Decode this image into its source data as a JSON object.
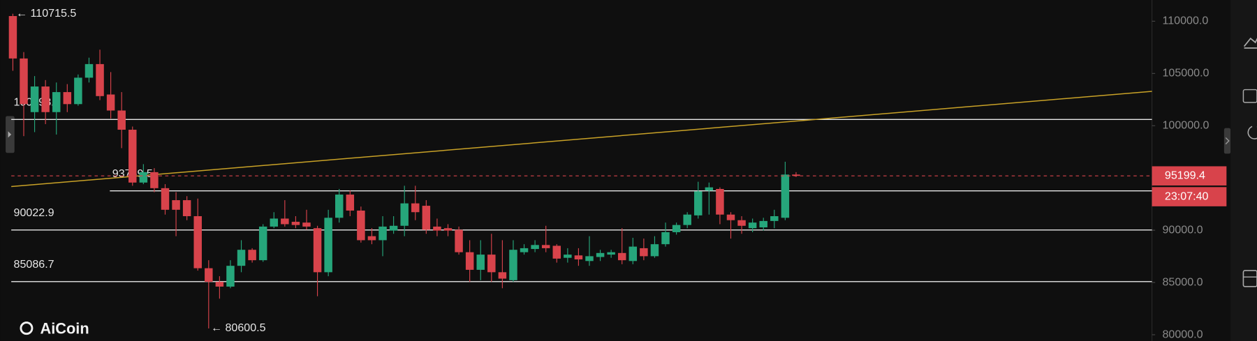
{
  "chart_data": {
    "type": "candlestick",
    "ylim": [
      79400,
      112030
    ],
    "yticks": [
      {
        "value": 110000,
        "label": "110000.0"
      },
      {
        "value": 105000,
        "label": "105000.0"
      },
      {
        "value": 100000,
        "label": "100000.0"
      },
      {
        "value": 95000,
        "label": "95000.0"
      },
      {
        "value": 90000,
        "label": "90000.0"
      },
      {
        "value": 85000,
        "label": "85000.0"
      },
      {
        "value": 80000,
        "label": "80000.0"
      }
    ],
    "up_color": "#26a67b",
    "down_color": "#d8434b",
    "open": [
      110494,
      106434,
      101302,
      103753,
      101302,
      103217,
      102068,
      104596,
      105898,
      102987,
      101455,
      99617,
      94561,
      95557,
      94025,
      92876,
      92876,
      91344,
      86365,
      85063,
      84604,
      86595,
      88127,
      87131,
      90348,
      91114,
      90808,
      90731,
      90195,
      85982,
      91191,
      93412,
      91880,
      89429,
      89046,
      89965,
      90425,
      92570,
      92340,
      90348,
      90195,
      90042,
      87897,
      86212,
      87667,
      85982,
      85216,
      87897,
      88203,
      88587,
      88510,
      87361,
      87591,
      87054,
      87438,
      87667,
      87821,
      87054,
      88280,
      87514,
      88663,
      89812,
      90501,
      91420,
      93795,
      93948,
      91497,
      90961,
      90195,
      90272,
      90885,
      91191,
      95327
    ],
    "high": [
      110715.5,
      107047,
      104749,
      104366,
      104136,
      103983,
      104902,
      106511,
      107277,
      105132,
      103217,
      99923,
      96323,
      95940,
      94408,
      93642,
      93259,
      93029,
      87131,
      85599,
      87131,
      89046,
      88280,
      90578,
      91727,
      92876,
      91344,
      91957,
      90425,
      91957,
      93948,
      93795,
      92263,
      90195,
      91344,
      91344,
      94255,
      94255,
      92876,
      91114,
      90578,
      90348,
      89046,
      89046,
      89659,
      89046,
      89046,
      88663,
      89046,
      90425,
      88663,
      88280,
      88280,
      89429,
      88127,
      88127,
      90195,
      89276,
      89199,
      89429,
      90731,
      90731,
      91727,
      94638,
      94561,
      94102,
      91727,
      91344,
      91114,
      91191,
      91957,
      96553,
      95557
    ],
    "low": [
      105259,
      99004,
      99387,
      100153,
      99157,
      101302,
      101915,
      104136,
      102451,
      100689,
      97855,
      94255,
      94408,
      93642,
      91497,
      89429,
      90961,
      86135,
      80600.5,
      83454,
      84451,
      85982,
      86901,
      86978,
      90195,
      90348,
      90195,
      90042,
      83684,
      85599,
      90731,
      91344,
      88817,
      88663,
      87514,
      89659,
      89429,
      90961,
      89659,
      89429,
      89429,
      87667,
      85063,
      85216,
      85063,
      84451,
      85063,
      87667,
      87897,
      87897,
      86901,
      86901,
      86595,
      86595,
      87054,
      87361,
      86748,
      86748,
      87131,
      87361,
      88433,
      89582,
      90195,
      91114,
      91497,
      90578,
      89199,
      89659,
      89812,
      89965,
      90195,
      90961,
      95097
    ],
    "close": [
      106434,
      102068,
      103753,
      101302,
      103217,
      102068,
      104596,
      105898,
      102834,
      101455,
      99617,
      94561,
      95557,
      94025,
      91957,
      91957,
      91344,
      86365,
      85063,
      84604,
      86595,
      88127,
      87131,
      90348,
      91114,
      90578,
      90501,
      90348,
      85982,
      91191,
      93412,
      91880,
      89046,
      89046,
      90348,
      90425,
      92570,
      91727,
      90042,
      89965,
      89965,
      87897,
      86212,
      87667,
      85982,
      85369,
      88127,
      88280,
      88587,
      88280,
      87284,
      87667,
      87208,
      87514,
      87821,
      87897,
      87131,
      88433,
      87514,
      88663,
      89812,
      90501,
      91497,
      93718,
      94102,
      91497,
      90961,
      90425,
      90731,
      90885,
      91344,
      95327,
      95199.4
    ],
    "high_label": "← 110715.5",
    "low_label": "← 80600.5",
    "levels": [
      100598.1,
      93769.5,
      90022.9,
      85086.7
    ],
    "level_color": "#e8e8e8",
    "trend_line": {
      "color": "#c9a227",
      "start": 94180,
      "end": 103290
    },
    "last_price": 95199.4,
    "countdown": "23:07:40",
    "watermark": "AiCoin"
  }
}
